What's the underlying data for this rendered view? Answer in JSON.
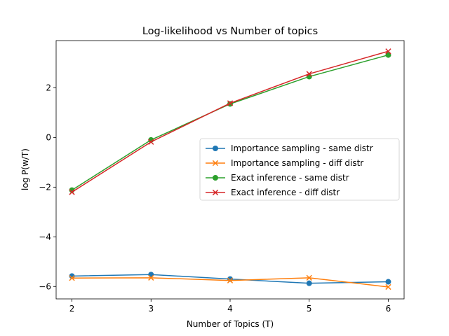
{
  "chart_data": {
    "type": "line",
    "title": "Log-likelihood vs Number of topics",
    "xlabel": "Number of Topics (T)",
    "ylabel": "log P(w/T)",
    "x": [
      2,
      3,
      4,
      5,
      6
    ],
    "xlim": [
      1.8,
      6.2
    ],
    "ylim": [
      -6.5,
      3.9
    ],
    "xticks": [
      2,
      3,
      4,
      5,
      6
    ],
    "yticks": [
      -6,
      -4,
      -2,
      0,
      2
    ],
    "ytick_labels": [
      "−6",
      "−4",
      "−2",
      "0",
      "2"
    ],
    "grid": false,
    "legend_position": "center-right",
    "series": [
      {
        "name": "Importance sampling - same distr",
        "color": "#1f77b4",
        "marker": "circle",
        "values": [
          -5.58,
          -5.52,
          -5.7,
          -5.87,
          -5.81
        ]
      },
      {
        "name": "Importance sampling - diff distr",
        "color": "#ff7f0e",
        "marker": "x",
        "values": [
          -5.66,
          -5.65,
          -5.76,
          -5.65,
          -6.02
        ]
      },
      {
        "name": "Exact inference - same distr",
        "color": "#2ca02c",
        "marker": "circle",
        "values": [
          -2.12,
          -0.1,
          1.35,
          2.45,
          3.32
        ]
      },
      {
        "name": "Exact inference - diff distr",
        "color": "#d62728",
        "marker": "x",
        "values": [
          -2.2,
          -0.18,
          1.38,
          2.56,
          3.47
        ]
      }
    ]
  }
}
